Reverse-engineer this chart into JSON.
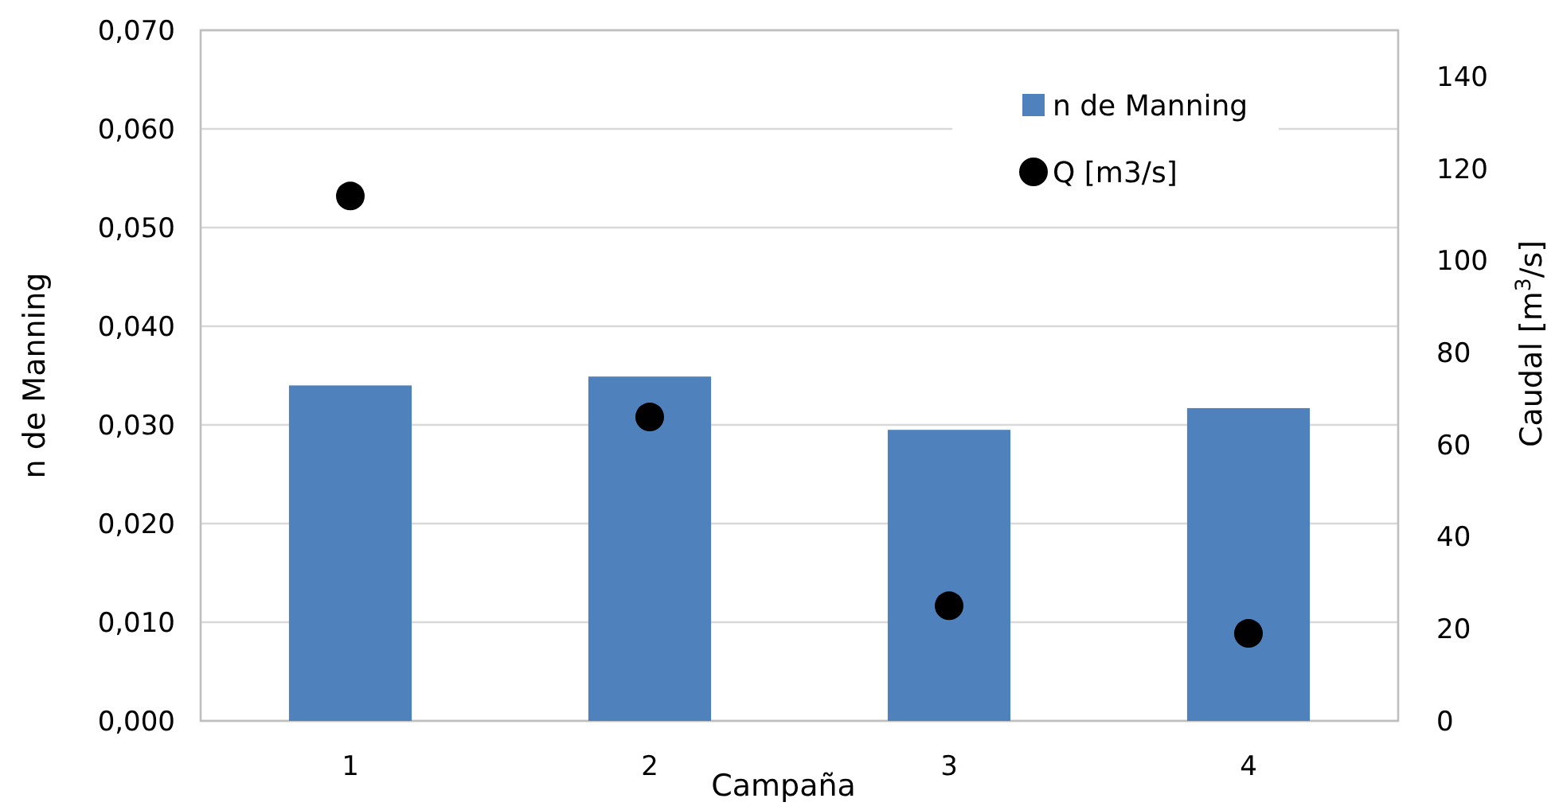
{
  "chart_data": {
    "type": "bar",
    "xlabel": "Campaña",
    "ylabel": "n de Manning",
    "y2label": "Caudal [m$^{3}$/s]",
    "categories": [
      "1",
      "2",
      "3",
      "4"
    ],
    "series": [
      {
        "name": "n de Manning",
        "color": "#4f81bd",
        "values": [
          0.034,
          0.0349,
          0.0295,
          0.0317
        ]
      },
      {
        "name": "Q [m3/s]",
        "type": "scatter",
        "axis": "y2",
        "color": "#000000",
        "marker": "circle",
        "values": [
          114,
          66,
          25,
          19
        ]
      }
    ],
    "ylim": [
      0,
      0.07
    ],
    "yticks": [
      {
        "value": 0,
        "label": "0,000"
      },
      {
        "value": 0.01,
        "label": "0,010"
      },
      {
        "value": 0.02,
        "label": "0,020"
      },
      {
        "value": 0.03,
        "label": "0,030"
      },
      {
        "value": 0.04,
        "label": "0,040"
      },
      {
        "value": 0.05,
        "label": "0,050"
      },
      {
        "value": 0.06,
        "label": "0,060"
      },
      {
        "value": 0.07,
        "label": "0,070"
      }
    ],
    "y2lim": [
      0,
      150
    ],
    "y2ticks": [
      0,
      20,
      40,
      60,
      80,
      100,
      120,
      140
    ],
    "grid": "y",
    "legend": "top right"
  }
}
